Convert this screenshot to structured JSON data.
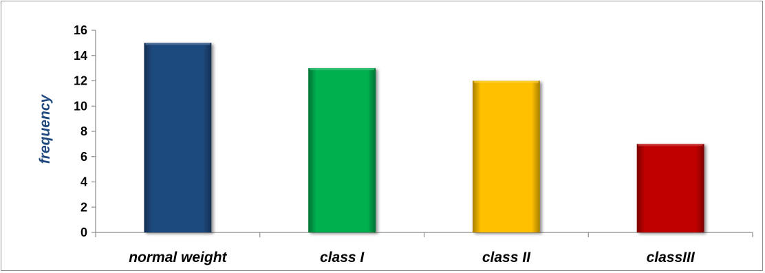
{
  "chart_data": {
    "type": "bar",
    "title": "",
    "xlabel": "",
    "ylabel": "frequency",
    "categories": [
      "normal weight",
      "class I",
      "class II",
      "classIII"
    ],
    "values": [
      15,
      13,
      12,
      7
    ],
    "ylim": [
      0,
      16
    ],
    "yticks": [
      0,
      2,
      4,
      6,
      8,
      10,
      12,
      14,
      16
    ],
    "grid": false,
    "legend": "none",
    "colors": [
      "#1f497d",
      "#00b050",
      "#ffc000",
      "#c00000"
    ],
    "ylabel_color": "#1f497d"
  }
}
